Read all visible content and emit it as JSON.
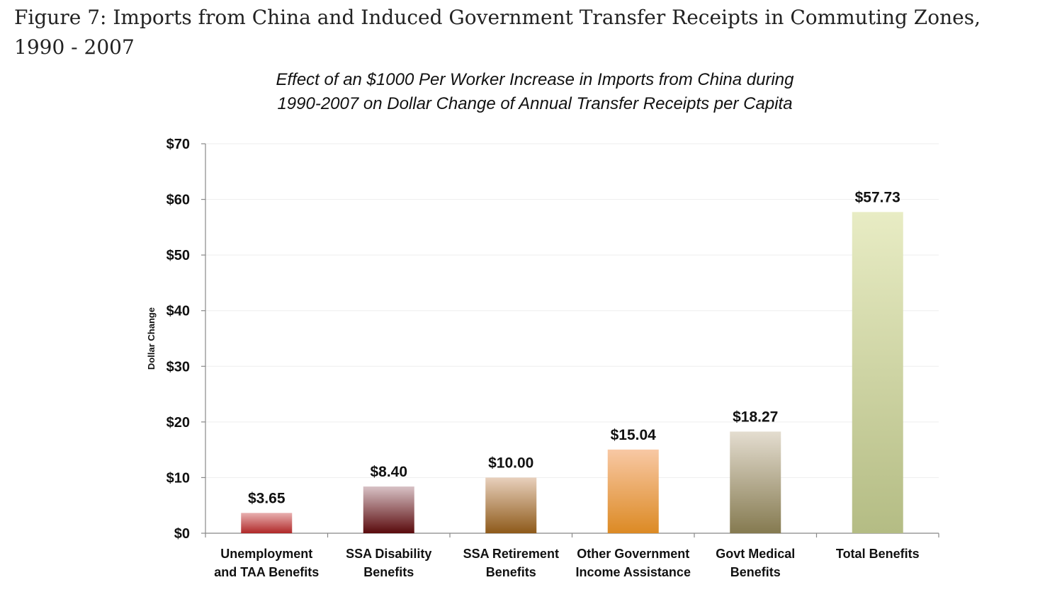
{
  "figure_caption": "Figure 7: Imports from China and Induced Government Transfer Receipts in Commuting Zones, 1990 - 2007",
  "chart_data": {
    "type": "bar",
    "title": [
      "Effect of an $1000 Per Worker Increase in Imports from China during",
      "1990-2007 on Dollar Change of Annual Transfer Receipts per Capita"
    ],
    "xlabel": "",
    "ylabel": "Dollar Change",
    "ylim": [
      0,
      70
    ],
    "yticks": [
      0,
      10,
      20,
      30,
      40,
      50,
      60,
      70
    ],
    "ytick_labels": [
      "$0",
      "$10",
      "$20",
      "$30",
      "$40",
      "$50",
      "$60",
      "$70"
    ],
    "categories": [
      [
        "Unemployment",
        "and TAA Benefits"
      ],
      [
        "SSA Disability",
        "Benefits"
      ],
      [
        "SSA Retirement",
        "Benefits"
      ],
      [
        "Other Government",
        "Income Assistance"
      ],
      [
        "Govt Medical",
        "Benefits"
      ],
      [
        "Total Benefits"
      ]
    ],
    "values": [
      3.65,
      8.4,
      10.0,
      15.04,
      18.27,
      57.73
    ],
    "data_labels": [
      "$3.65",
      "$8.40",
      "$10.00",
      "$15.04",
      "$18.27",
      "$57.73"
    ],
    "bar_colors": [
      [
        "#e8b0b0",
        "#b02828"
      ],
      [
        "#d8c2c6",
        "#5a0a0c"
      ],
      [
        "#e8d0bc",
        "#8e5a1a"
      ],
      [
        "#f8c8a4",
        "#dc8a24"
      ],
      [
        "#e4ddd0",
        "#857a50"
      ],
      [
        "#e8ecc4",
        "#b4bc84"
      ]
    ],
    "grid": true
  }
}
